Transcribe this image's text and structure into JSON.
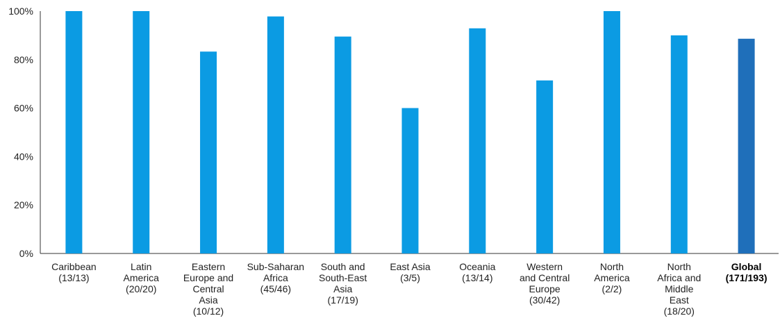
{
  "chart_data": {
    "type": "bar",
    "categories": [
      {
        "lines": [
          "Caribbean",
          "(13/13)"
        ],
        "bold": false
      },
      {
        "lines": [
          "Latin",
          "America",
          "(20/20)"
        ],
        "bold": false
      },
      {
        "lines": [
          "Eastern",
          "Europe and",
          "Central",
          "Asia",
          "(10/12)"
        ],
        "bold": false
      },
      {
        "lines": [
          "Sub-Saharan",
          "Africa",
          "(45/46)"
        ],
        "bold": false
      },
      {
        "lines": [
          "South and",
          "South-East",
          "Asia",
          "(17/19)"
        ],
        "bold": false
      },
      {
        "lines": [
          "East Asia",
          "(3/5)"
        ],
        "bold": false
      },
      {
        "lines": [
          "Oceania",
          "(13/14)"
        ],
        "bold": false
      },
      {
        "lines": [
          "Western",
          "and Central",
          "Europe",
          "(30/42)"
        ],
        "bold": false
      },
      {
        "lines": [
          "North",
          "America",
          "(2/2)"
        ],
        "bold": false
      },
      {
        "lines": [
          "North",
          "Africa and",
          "Middle",
          "East",
          "(18/20)"
        ],
        "bold": false
      },
      {
        "lines": [
          "Global",
          "(171/193)"
        ],
        "bold": true
      }
    ],
    "values": [
      100,
      100,
      83.3,
      97.8,
      89.5,
      60,
      92.9,
      71.4,
      100,
      90,
      88.6
    ],
    "ylim": [
      0,
      100
    ],
    "yticks": [
      "0%",
      "20%",
      "40%",
      "60%",
      "80%",
      "100%"
    ],
    "bar_color": "#0b9be3",
    "highlight_color": "#1f6fba",
    "grid": false,
    "legend": "none"
  }
}
